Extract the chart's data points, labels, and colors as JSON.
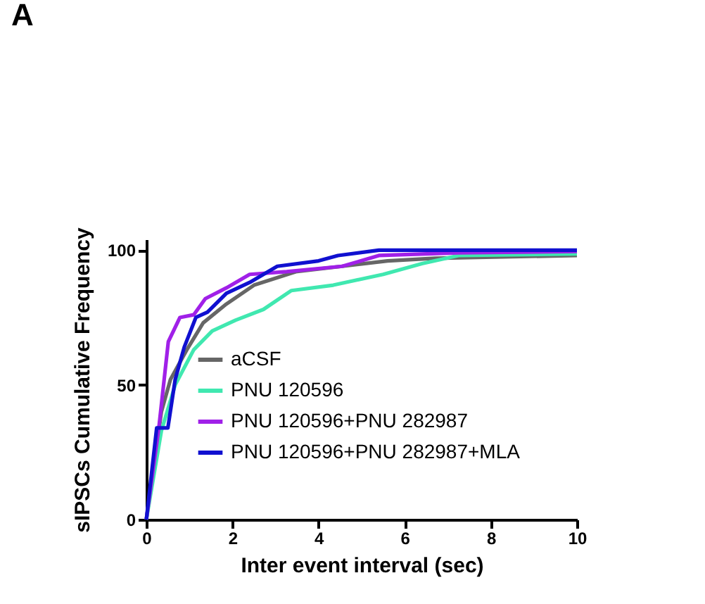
{
  "chart_data": {
    "type": "line",
    "title": "A",
    "xlabel": "Inter event interval (sec)",
    "ylabel": "sIPSCs Cumulative Frequency",
    "xlim": [
      0,
      10
    ],
    "xticks": [
      0,
      2,
      4,
      6,
      8,
      10
    ],
    "ylim": [
      0,
      104
    ],
    "yticks": [
      0,
      50,
      100
    ],
    "grid": false,
    "legend": "right",
    "marker": "none",
    "line_style": "solid",
    "series": [
      {
        "name": "aCSF",
        "color": "#666666",
        "x": [
          0,
          0.35,
          0.56,
          0.94,
          1.32,
          1.86,
          2.5,
          3.47,
          4.55,
          5.6,
          6.7,
          10
        ],
        "values": [
          0,
          40,
          52,
          63,
          73,
          80,
          87,
          92,
          94,
          96,
          97,
          98
        ]
      },
      {
        "name": "PNU 120596",
        "color": "#40e8b0",
        "x": [
          0,
          0.35,
          0.67,
          1.1,
          1.53,
          2.07,
          2.72,
          3.37,
          4.34,
          5.5,
          6.4,
          7.25,
          10
        ],
        "values": [
          0,
          33,
          50,
          63,
          70,
          74,
          78,
          85,
          87,
          91,
          95,
          98,
          98.6
        ]
      },
      {
        "name": "PNU 120596+PNU 282987",
        "color": "#a020e8",
        "x": [
          0,
          0.29,
          0.51,
          0.78,
          1.1,
          1.37,
          1.86,
          2.4,
          3.26,
          4.55,
          5.4,
          7.25,
          10
        ],
        "values": [
          0,
          34,
          66,
          75,
          76,
          82,
          86,
          91,
          92,
          94,
          98,
          99,
          99.5
        ]
      },
      {
        "name": "PNU 120596+PNU 282987+MLA",
        "color": "#1010d0",
        "x": [
          0,
          0.24,
          0.5,
          0.67,
          0.88,
          1.15,
          1.42,
          1.86,
          2.4,
          3.04,
          4.0,
          4.45,
          5.4,
          10
        ],
        "values": [
          0,
          34,
          34,
          52,
          64,
          75,
          77,
          84,
          88,
          94,
          96,
          98,
          100,
          100
        ]
      }
    ]
  }
}
